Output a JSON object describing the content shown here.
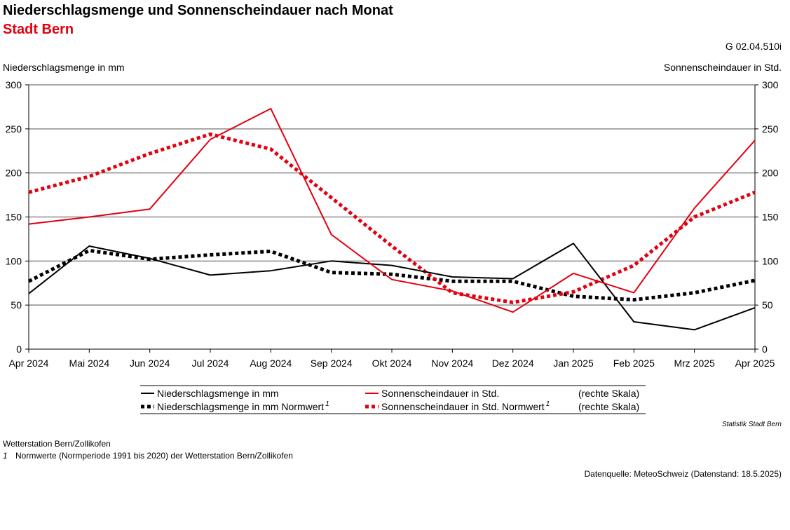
{
  "header": {
    "title": "Niederschlagsmenge und Sonnenscheindauer nach Monat",
    "subtitle": "Stadt Bern",
    "code": "G 02.04.510i"
  },
  "footer": {
    "credit": "Statistik Stadt Bern",
    "station": "Wetterstation Bern/Zollikofen",
    "footnote_marker": "1",
    "footnote": "Normwerte (Normperiode 1991 bis 2020) der Wetterstation Bern/Zollikofen",
    "source": "Datenquelle: MeteoSchweiz (Datenstand: 18.5.2025)"
  },
  "chart_data": {
    "type": "line",
    "ylabel": "Niederschlagsmenge in mm",
    "y2label": "Sonnenscheindauer in Std.",
    "ylim": [
      0,
      300
    ],
    "y2lim": [
      0,
      300
    ],
    "yticks": [
      0,
      50,
      100,
      150,
      200,
      250,
      300
    ],
    "grid": true,
    "legend_position": "bottom",
    "categories": [
      "Apr 2024",
      "Mai 2024",
      "Jun 2024",
      "Jul 2024",
      "Aug 2024",
      "Sep 2024",
      "Okt 2024",
      "Nov 2024",
      "Dez 2024",
      "Jan 2025",
      "Feb 2025",
      "Mrz 2025",
      "Apr 2025"
    ],
    "series": [
      {
        "name": "Niederschlagsmenge in mm",
        "color": "#000000",
        "style": "solid",
        "axis": "left",
        "note": "",
        "values": [
          63,
          117,
          103,
          84,
          89,
          100,
          95,
          82,
          80,
          120,
          31,
          22,
          47
        ]
      },
      {
        "name": "Sonnenscheindauer in Std.",
        "color": "#e3000f",
        "style": "solid",
        "axis": "right",
        "note": "(rechte Skala)",
        "values": [
          142,
          150,
          159,
          238,
          273,
          130,
          79,
          66,
          42,
          86,
          64,
          160,
          237
        ]
      },
      {
        "name": "Niederschlagsmenge in mm Normwert",
        "sup": "1",
        "color": "#000000",
        "style": "dotted",
        "axis": "left",
        "note": "",
        "values": [
          77,
          112,
          102,
          107,
          111,
          87,
          85,
          77,
          77,
          60,
          56,
          64,
          78
        ]
      },
      {
        "name": "Sonnenscheindauer in Std. Normwert",
        "sup": "1",
        "color": "#e3000f",
        "style": "dotted",
        "axis": "right",
        "note": "(rechte Skala)",
        "values": [
          178,
          196,
          222,
          244,
          227,
          172,
          117,
          64,
          53,
          65,
          95,
          150,
          178
        ]
      }
    ]
  }
}
